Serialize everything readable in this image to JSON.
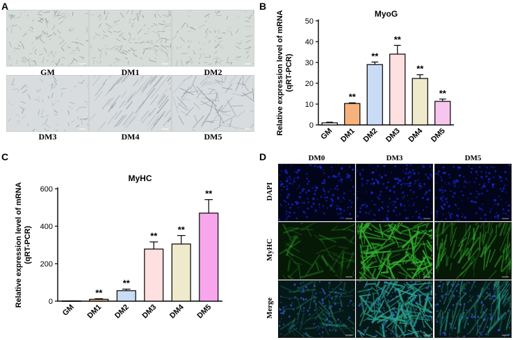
{
  "panels": {
    "a": {
      "letter": "A",
      "images": [
        {
          "label": "GM",
          "texture": "dense"
        },
        {
          "label": "DM1",
          "texture": "dense"
        },
        {
          "label": "DM2",
          "texture": "medium"
        },
        {
          "label": "DM3",
          "texture": "sparse"
        },
        {
          "label": "DM4",
          "texture": "streaks"
        },
        {
          "label": "DM5",
          "texture": "fibers"
        }
      ]
    },
    "b": {
      "letter": "B"
    },
    "c": {
      "letter": "C"
    },
    "d": {
      "letter": "D",
      "columns": [
        "DM0",
        "DM3",
        "DM5"
      ],
      "rows": [
        "DAPI",
        "MyHC",
        "Merge"
      ],
      "colors": {
        "dapi": "#1426c8",
        "myhc": "#2fae2c",
        "merge": "#2aa08a"
      }
    }
  },
  "chart_data": [
    {
      "type": "bar",
      "title": "MyoG",
      "ylabel_line1": "Relative expression level of mRNA",
      "ylabel_line2": "(qRT-PCR)",
      "categories": [
        "GM",
        "DM1",
        "DM2",
        "DM3",
        "DM4",
        "DM5"
      ],
      "values": [
        1,
        10.3,
        29,
        34,
        22.3,
        11.3
      ],
      "errors": [
        0.3,
        0.3,
        1.2,
        4.2,
        1.8,
        1.1
      ],
      "significance": [
        "",
        "**",
        "**",
        "**",
        "**",
        "**"
      ],
      "colors": [
        "#ffffff",
        "#f6b27d",
        "#c9dcf6",
        "#fde0df",
        "#efeacb",
        "#f7c6ef"
      ],
      "ylim": [
        0,
        50
      ],
      "yticks": [
        0,
        10,
        20,
        30,
        40,
        50
      ],
      "grid": false
    },
    {
      "type": "bar",
      "title": "MyHC",
      "ylabel_line1": "Relative expression level of mRNA",
      "ylabel_line2": "(qRT-PCR)",
      "categories": [
        "GM",
        "DM1",
        "DM2",
        "DM3",
        "DM4",
        "DM5"
      ],
      "values": [
        1,
        10,
        56,
        278,
        305,
        470
      ],
      "errors": [
        0.5,
        3,
        8,
        38,
        45,
        72
      ],
      "significance": [
        "",
        "**",
        "**",
        "**",
        "**",
        "**"
      ],
      "colors": [
        "#ffffff",
        "#f6b27d",
        "#c9dcf6",
        "#fde0df",
        "#efeacb",
        "#f7a6ec"
      ],
      "ylim": [
        0,
        600
      ],
      "yticks": [
        0,
        200,
        400,
        600
      ],
      "grid": false
    }
  ]
}
